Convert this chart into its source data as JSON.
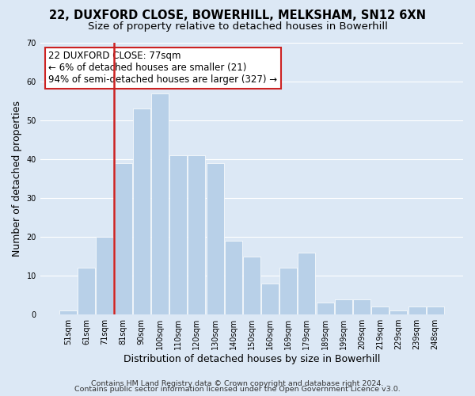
{
  "title": "22, DUXFORD CLOSE, BOWERHILL, MELKSHAM, SN12 6XN",
  "subtitle": "Size of property relative to detached houses in Bowerhill",
  "xlabel": "Distribution of detached houses by size in Bowerhill",
  "ylabel": "Number of detached properties",
  "bar_labels": [
    "51sqm",
    "61sqm",
    "71sqm",
    "81sqm",
    "90sqm",
    "100sqm",
    "110sqm",
    "120sqm",
    "130sqm",
    "140sqm",
    "150sqm",
    "160sqm",
    "169sqm",
    "179sqm",
    "189sqm",
    "199sqm",
    "209sqm",
    "219sqm",
    "229sqm",
    "239sqm",
    "248sqm"
  ],
  "bar_values": [
    1,
    12,
    20,
    39,
    53,
    57,
    41,
    41,
    39,
    19,
    15,
    8,
    12,
    16,
    3,
    4,
    4,
    2,
    1,
    2,
    2
  ],
  "bar_color_normal": "#b8d0e8",
  "bar_color_highlight": "#cc2222",
  "vline_index": 2,
  "ylim": [
    0,
    70
  ],
  "yticks": [
    0,
    10,
    20,
    30,
    40,
    50,
    60,
    70
  ],
  "annotation_title": "22 DUXFORD CLOSE: 77sqm",
  "annotation_line1": "← 6% of detached houses are smaller (21)",
  "annotation_line2": "94% of semi-detached houses are larger (327) →",
  "annotation_box_facecolor": "#ffffff",
  "annotation_box_edgecolor": "#cc2222",
  "footer_line1": "Contains HM Land Registry data © Crown copyright and database right 2024.",
  "footer_line2": "Contains public sector information licensed under the Open Government Licence v3.0.",
  "background_color": "#dce8f5",
  "plot_bg_color": "#dce8f5",
  "title_fontsize": 10.5,
  "subtitle_fontsize": 9.5,
  "axis_label_fontsize": 9,
  "tick_fontsize": 7,
  "annotation_fontsize": 8.5,
  "footer_fontsize": 6.8
}
